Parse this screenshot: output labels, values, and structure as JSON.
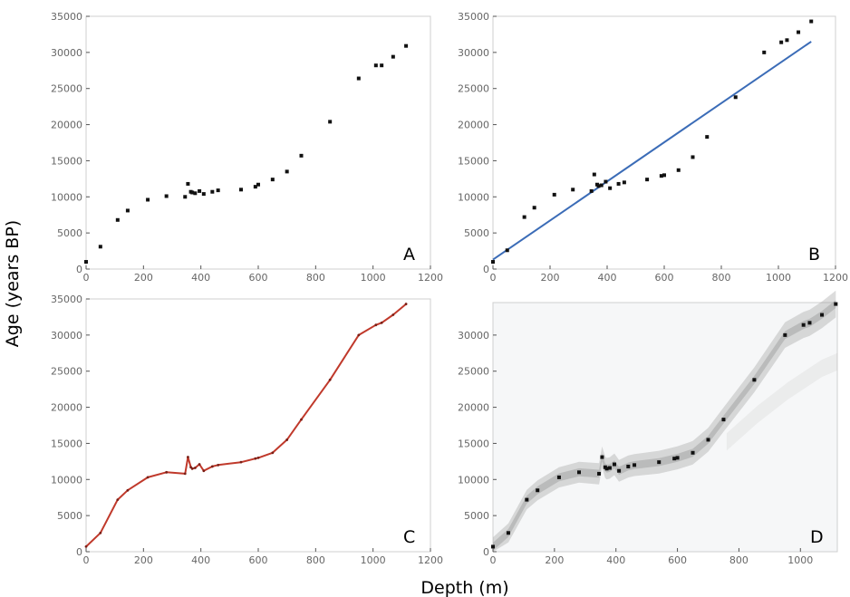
{
  "figure": {
    "xlabel": "Depth (m)",
    "ylabel": "Age (years BP)"
  },
  "colors": {
    "points": "#111111",
    "regression_line": "#3b6cb7",
    "age_model_line": "#c0392b",
    "density_band": "#9a9a9a",
    "panel_background": "#f6f7f8"
  },
  "chart_data": [
    {
      "panel": "A",
      "type": "scatter",
      "xlim": [
        0,
        1200
      ],
      "ylim": [
        0,
        35000
      ],
      "xticks": [
        "0",
        "200",
        "400",
        "600",
        "800",
        "1000",
        "1200"
      ],
      "yticks": [
        "0",
        "5000",
        "10000",
        "15000",
        "20000",
        "25000",
        "30000",
        "35000"
      ],
      "series": [
        {
          "x": [
            0,
            50,
            110,
            145,
            215,
            280,
            345,
            355,
            365,
            370,
            380,
            395,
            410,
            440,
            460,
            540,
            590,
            600,
            650,
            700,
            750,
            850,
            950,
            1010,
            1030,
            1070,
            1115
          ],
          "y": [
            1000,
            3100,
            6800,
            8100,
            9600,
            10100,
            10000,
            11800,
            10700,
            10600,
            10500,
            10800,
            10400,
            10700,
            10900,
            11000,
            11400,
            11700,
            12400,
            13500,
            15700,
            20400,
            26400,
            28200,
            28200,
            29400,
            30900
          ]
        }
      ]
    },
    {
      "panel": "B",
      "type": "scatter",
      "xlim": [
        0,
        1200
      ],
      "ylim": [
        0,
        35000
      ],
      "xticks": [
        "0",
        "200",
        "400",
        "600",
        "800",
        "1000",
        "1200"
      ],
      "yticks": [
        "0",
        "5000",
        "10000",
        "15000",
        "20000",
        "25000",
        "30000",
        "35000"
      ],
      "series": [
        {
          "x": [
            0,
            50,
            110,
            145,
            215,
            280,
            345,
            355,
            365,
            370,
            380,
            395,
            410,
            440,
            460,
            540,
            590,
            600,
            650,
            700,
            750,
            850,
            950,
            1010,
            1030,
            1070,
            1115
          ],
          "y": [
            1000,
            2600,
            7200,
            8500,
            10300,
            11000,
            10800,
            13100,
            11700,
            11500,
            11600,
            12100,
            11200,
            11800,
            12000,
            12400,
            12900,
            13000,
            13700,
            15500,
            18300,
            23800,
            30000,
            31400,
            31700,
            32800,
            34300
          ]
        }
      ],
      "fit_line": {
        "x": [
          0,
          1115
        ],
        "y": [
          1300,
          31500
        ]
      }
    },
    {
      "panel": "C",
      "type": "line",
      "xlim": [
        0,
        1200
      ],
      "ylim": [
        0,
        35000
      ],
      "xticks": [
        "0",
        "200",
        "400",
        "600",
        "800",
        "1000",
        "1200"
      ],
      "yticks": [
        "0",
        "5000",
        "10000",
        "15000",
        "20000",
        "25000",
        "30000",
        "35000"
      ],
      "series": [
        {
          "x": [
            0,
            50,
            110,
            145,
            215,
            280,
            345,
            355,
            365,
            370,
            380,
            395,
            410,
            440,
            460,
            540,
            590,
            600,
            650,
            700,
            750,
            850,
            950,
            1010,
            1030,
            1070,
            1115
          ],
          "y": [
            700,
            2600,
            7200,
            8500,
            10300,
            11000,
            10800,
            13100,
            11700,
            11500,
            11600,
            12100,
            11200,
            11800,
            12000,
            12400,
            12900,
            13000,
            13700,
            15500,
            18300,
            23800,
            30000,
            31400,
            31700,
            32800,
            34300
          ]
        }
      ]
    },
    {
      "panel": "D",
      "type": "heatmap",
      "xlim": [
        0,
        1120
      ],
      "ylim": [
        0,
        34500
      ],
      "xticks": [
        "0",
        "200",
        "400",
        "600",
        "800",
        "1000"
      ],
      "yticks": [
        "0",
        "5000",
        "10000",
        "15000",
        "20000",
        "25000",
        "30000"
      ],
      "series": [
        {
          "x": [
            0,
            50,
            110,
            145,
            215,
            280,
            345,
            355,
            365,
            370,
            380,
            395,
            410,
            440,
            460,
            540,
            590,
            600,
            650,
            700,
            750,
            850,
            950,
            1010,
            1030,
            1070,
            1115
          ],
          "y": [
            700,
            2600,
            7200,
            8500,
            10300,
            11000,
            10800,
            13100,
            11700,
            11500,
            11600,
            12100,
            11200,
            11800,
            12000,
            12400,
            12900,
            13000,
            13700,
            15500,
            18300,
            23800,
            30000,
            31400,
            31700,
            32800,
            34300
          ]
        }
      ]
    }
  ]
}
